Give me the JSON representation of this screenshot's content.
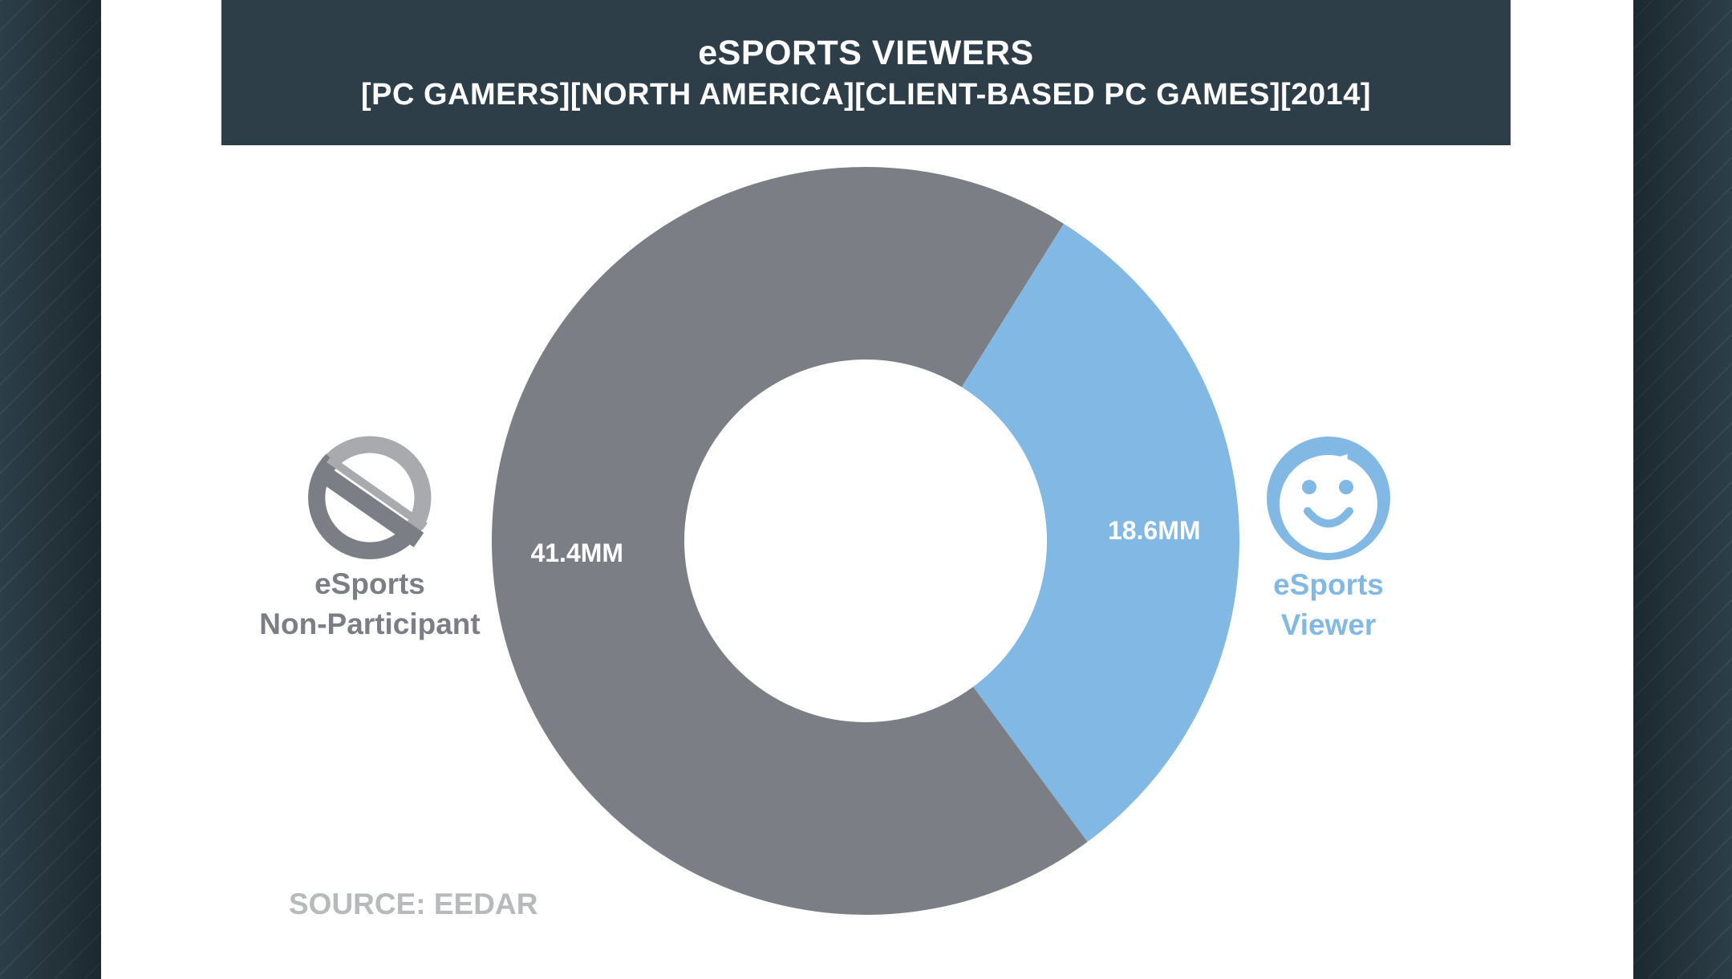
{
  "colors": {
    "background": "#2c3e48",
    "header": "#2d3e48",
    "non_participant": "#7c7e85",
    "viewer": "#82b8e4",
    "source_text": "#b8b9bb"
  },
  "legend": {
    "non_participant": {
      "line1": "eSports",
      "line2": "Non-Participant",
      "icon": "prohibited-icon"
    },
    "viewer": {
      "line1": "eSports",
      "line2": "Viewer",
      "icon": "smiley-face-icon"
    }
  },
  "source": "SOURCE: EEDAR",
  "chart_data": {
    "type": "pie",
    "donut": true,
    "title": "eSPORTS VIEWERS",
    "subtitle": "[PC GAMERS][NORTH AMERICA][CLIENT-BASED PC GAMES][2014]",
    "unit": "MM",
    "slices": [
      {
        "label": "eSports Viewer",
        "value": 18.6,
        "value_label": "18.6MM",
        "color": "#82b8e4"
      },
      {
        "label": "eSports Non-Participant",
        "value": 41.4,
        "value_label": "41.4MM",
        "color": "#7c7e85"
      }
    ],
    "start_angle_deg": 32
  }
}
